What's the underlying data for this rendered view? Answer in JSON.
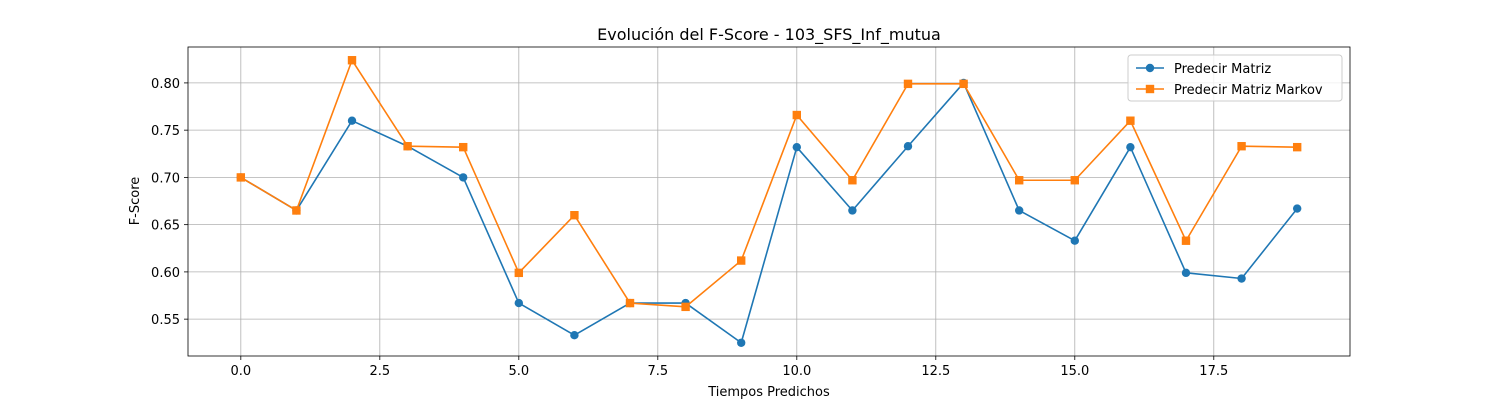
{
  "chart_data": {
    "type": "line",
    "title": "Evolución del F-Score - 103_SFS_Inf_mutua",
    "xlabel": "Tiempos Predichos",
    "ylabel": "F-Score",
    "xlim": [
      -0.95,
      19.95
    ],
    "ylim": [
      0.511,
      0.838
    ],
    "x_ticks": [
      0.0,
      2.5,
      5.0,
      7.5,
      10.0,
      12.5,
      15.0,
      17.5
    ],
    "x_tick_labels": [
      "0.0",
      "2.5",
      "5.0",
      "7.5",
      "10.0",
      "12.5",
      "15.0",
      "17.5"
    ],
    "y_ticks": [
      0.55,
      0.6,
      0.65,
      0.7,
      0.75,
      0.8
    ],
    "y_tick_labels": [
      "0.55",
      "0.60",
      "0.65",
      "0.70",
      "0.75",
      "0.80"
    ],
    "grid": true,
    "legend_position": "top-right",
    "x": [
      0,
      1,
      2,
      3,
      4,
      5,
      6,
      7,
      8,
      9,
      10,
      11,
      12,
      13,
      14,
      15,
      16,
      17,
      18,
      19
    ],
    "series": [
      {
        "name": "Predecir Matriz",
        "color": "#1f77b4",
        "marker": "circle",
        "values": [
          0.7,
          0.665,
          0.76,
          0.733,
          0.7,
          0.567,
          0.533,
          0.567,
          0.567,
          0.525,
          0.732,
          0.665,
          0.733,
          0.8,
          0.665,
          0.633,
          0.732,
          0.599,
          0.593,
          0.667
        ]
      },
      {
        "name": "Predecir Matriz Markov",
        "color": "#ff7f0e",
        "marker": "square",
        "values": [
          0.7,
          0.665,
          0.824,
          0.733,
          0.732,
          0.599,
          0.66,
          0.567,
          0.563,
          0.612,
          0.766,
          0.697,
          0.799,
          0.799,
          0.697,
          0.697,
          0.76,
          0.633,
          0.733,
          0.732
        ]
      }
    ]
  }
}
